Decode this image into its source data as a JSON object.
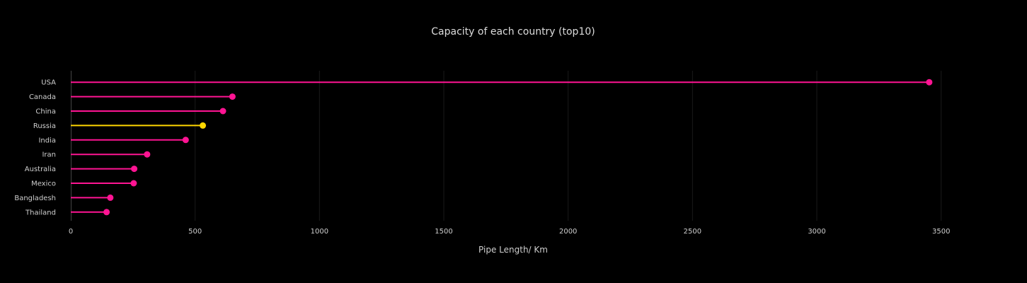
{
  "chart_data": {
    "type": "lollipop",
    "title": "Capacity of each country (top10)",
    "xlabel": "Pipe Length/ Km",
    "ylabel": "",
    "categories": [
      "USA",
      "Canada",
      "China",
      "Russia",
      "India",
      "Iran",
      "Australia",
      "Mexico",
      "Bangladesh",
      "Thailand"
    ],
    "values": [
      3452,
      650,
      612,
      531,
      462,
      307,
      255,
      253,
      159,
      144
    ],
    "xlim": [
      0,
      3700
    ],
    "xticks": [
      0,
      500,
      1000,
      1500,
      2000,
      2500,
      3000,
      3500
    ],
    "highlight": "Russia",
    "colors": {
      "default": "#ff1493",
      "highlight": "#ffd700",
      "background": "#000000",
      "grid": "#1a1a1a"
    },
    "grid": true,
    "legend": "none"
  }
}
